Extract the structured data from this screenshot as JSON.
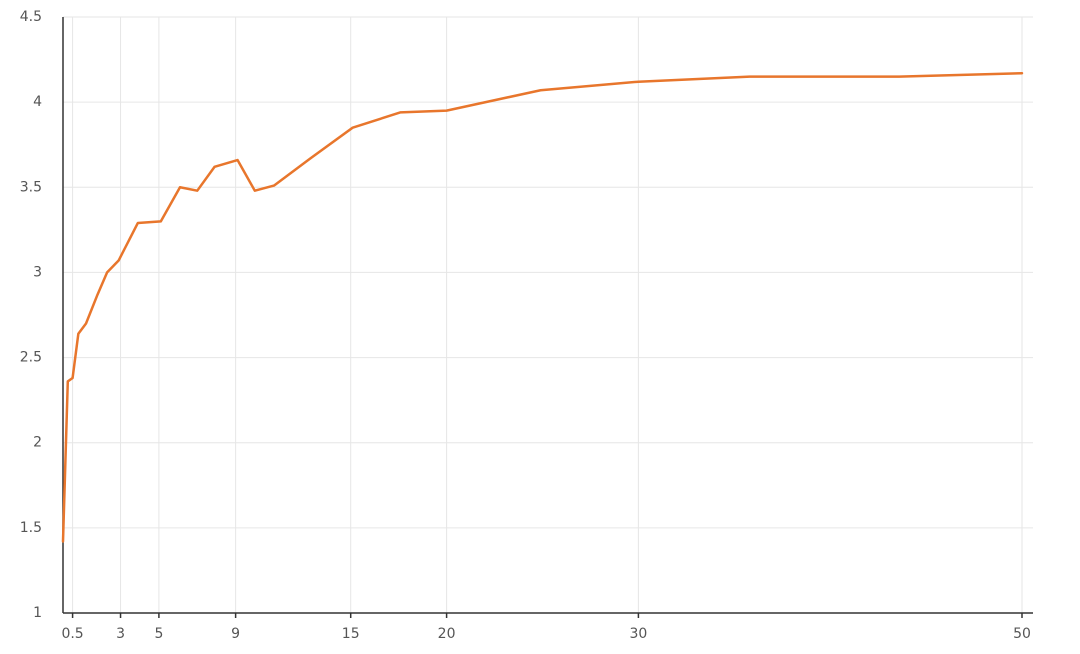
{
  "chart_data": {
    "type": "line",
    "x": [
      0,
      0.25,
      0.5,
      0.8,
      1.2,
      1.8,
      2.3,
      2.9,
      3.9,
      5.1,
      6.1,
      7.0,
      7.9,
      9.1,
      10.0,
      11.0,
      12.9,
      15.1,
      17.6,
      20.0,
      24.9,
      30.0,
      35.8,
      43.6,
      50.0
    ],
    "series": [
      {
        "color": "#e8762c",
        "values": [
          1.42,
          2.36,
          2.38,
          2.64,
          2.7,
          2.87,
          3.0,
          3.07,
          3.29,
          3.3,
          3.5,
          3.48,
          3.62,
          3.66,
          3.48,
          3.51,
          3.67,
          3.85,
          3.94,
          3.95,
          4.07,
          4.12,
          4.15,
          4.15,
          4.17
        ]
      }
    ],
    "xlim": [
      0,
      50
    ],
    "xticks": [
      0.5,
      3,
      5,
      9,
      15,
      20,
      30,
      50
    ],
    "ylim": [
      1,
      4.5
    ],
    "yticks": [
      1,
      1.5,
      2,
      2.5,
      3,
      3.5,
      4,
      4.5
    ],
    "grid": true
  }
}
